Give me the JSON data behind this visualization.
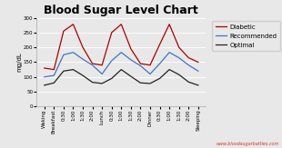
{
  "title": "Blood Sugar Level Chart",
  "ylabel": "mg/dL",
  "ylim": [
    0,
    300
  ],
  "yticks": [
    0,
    50,
    100,
    150,
    200,
    250,
    300
  ],
  "categories": [
    "Waking",
    "Breakfast",
    "0:30",
    "1:00",
    "1:30",
    "2:00",
    "Lunch",
    "0:30",
    "1:00",
    "1:30",
    "2:00",
    "Dinner",
    "0:30",
    "1:00",
    "1:30",
    "2:00",
    "Sleeping"
  ],
  "diabetic": [
    130,
    125,
    255,
    278,
    200,
    145,
    140,
    250,
    278,
    195,
    145,
    140,
    210,
    278,
    200,
    165,
    150
  ],
  "recommended": [
    100,
    105,
    175,
    183,
    160,
    140,
    110,
    155,
    183,
    158,
    138,
    110,
    145,
    183,
    165,
    140,
    120
  ],
  "optimal": [
    72,
    80,
    120,
    125,
    105,
    82,
    78,
    95,
    125,
    102,
    80,
    78,
    95,
    125,
    108,
    83,
    72
  ],
  "color_diabetic": "#aa0000",
  "color_recommended": "#4472c4",
  "color_optimal": "#222222",
  "bg_color": "#e8e8e8",
  "plot_bg_color": "#e8e8e8",
  "legend_diabetic": "Diabetic",
  "legend_recommended": "Recommended",
  "legend_optimal": "Optimal",
  "watermark": "www.bloodsugarbattles.com",
  "title_fontsize": 9,
  "ylabel_fontsize": 5,
  "tick_fontsize": 4,
  "legend_fontsize": 5,
  "line_width": 0.9,
  "grid_color": "#ffffff",
  "watermark_color": "#cc2222"
}
